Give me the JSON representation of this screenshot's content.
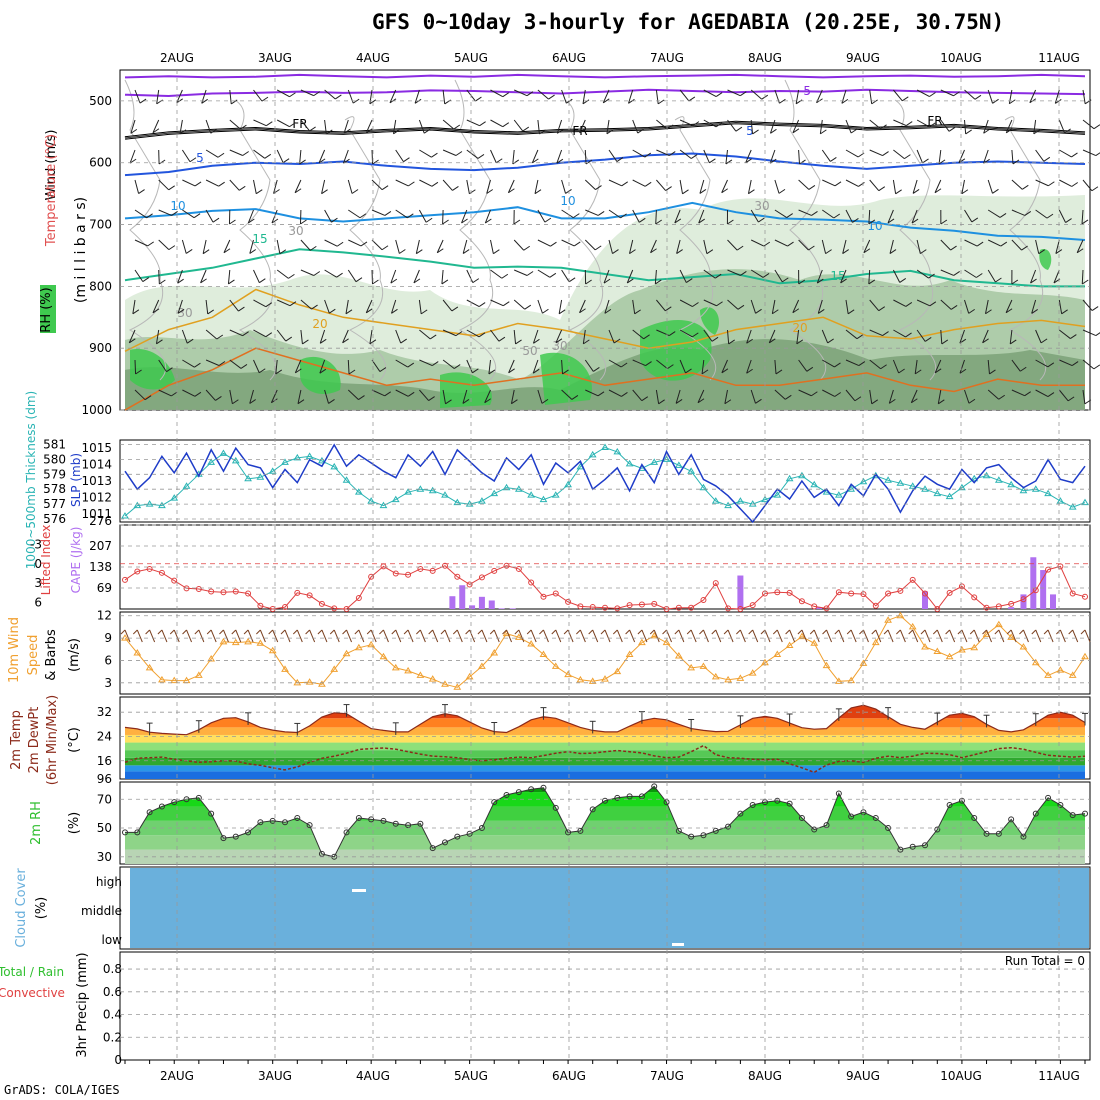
{
  "title": "GFS 0~10day 3-hourly for AGEDABIA (20.25E, 30.75N)",
  "footer": "GrADS: COLA/IGES",
  "date_labels": [
    "2AUG",
    "3AUG",
    "4AUG",
    "5AUG",
    "6AUG",
    "7AUG",
    "8AUG",
    "9AUG",
    "10AUG",
    "11AUG"
  ],
  "colors": {
    "rh_light": "#dcebd8",
    "rh_mid": "#a9c8a4",
    "rh_dark": "#7ea47a",
    "rh_green": "#3fc94f",
    "slp": "#1e3cc8",
    "thickness": "#2ab4b4",
    "lifted_index": "#e04040",
    "cape": "#b070f0",
    "wind10m": "#f0a030",
    "temp": "#8b2a1a",
    "dewpt": "#8b2a1a",
    "rh2m": "#2fbf2f",
    "cloud": "#6ab0dc"
  },
  "panels": {
    "upper": {
      "ylabel": [
        "Wind (m/s)",
        "Temperature (°C)",
        "RH (%)",
        "(m i l l i b a r s)"
      ],
      "yticks": [
        "500",
        "600",
        "700",
        "800",
        "900",
        "1000"
      ],
      "contour_labels": [
        "-5",
        "FR",
        "FR",
        "FR",
        "5",
        "5",
        "10",
        "10",
        "10",
        "15",
        "15",
        "20",
        "20",
        "30",
        "30",
        "30",
        "50",
        "30"
      ]
    },
    "slp": {
      "ylabel_left": "1000~500mb Thickness (dm)",
      "ylabel_right": "SLP (mb)",
      "left_ticks": [
        "581",
        "580",
        "579",
        "578",
        "577",
        "576"
      ],
      "right_ticks": [
        "1015",
        "1014",
        "1013",
        "1012",
        "1011"
      ]
    },
    "cape": {
      "ylabel_left": "Lifted Index",
      "ylabel_right": "CAPE (J/kg)",
      "left_ticks": [
        "-3",
        "0",
        "3",
        "6"
      ],
      "right_ticks": [
        "276",
        "207",
        "138",
        "69"
      ]
    },
    "wind": {
      "ylabel": [
        "10m Wind",
        "Speed",
        "& Barbs",
        "(m/s)"
      ],
      "ticks": [
        "12",
        "9",
        "6",
        "3"
      ]
    },
    "temp": {
      "ylabel": [
        "2m Temp",
        "2m DewPt",
        "(6hr Min/Max)",
        "(°C)"
      ],
      "ticks": [
        "32",
        "24",
        "16",
        "96"
      ]
    },
    "rh": {
      "ylabel": [
        "2m RH",
        "(%)"
      ],
      "ticks": [
        "70",
        "50",
        "30"
      ]
    },
    "cloud": {
      "ylabel": [
        "Cloud Cover",
        "(%)"
      ],
      "ticks": [
        "high",
        "middle",
        "low"
      ]
    },
    "precip": {
      "ylabel": [
        "Total / Rain",
        "Convective",
        "3hr Precip (mm)"
      ],
      "ticks": [
        "0.8",
        "0.6",
        "0.4",
        "0.2",
        "0"
      ],
      "run_total": "Run Total = 0"
    }
  },
  "chart_data": [
    {
      "type": "line",
      "title": "SLP (mb)",
      "series": [
        {
          "name": "SLP (mb)",
          "values": [
            1013.6,
            1012.5,
            1013.2,
            1014.5,
            1013.5,
            1014.7,
            1013.3,
            1014.9,
            1013.6,
            1015.0,
            1014.0,
            1013.8,
            1012.6,
            1013.7,
            1012.9,
            1014.3,
            1013.9,
            1015.2,
            1013.9,
            1014.6,
            1014.1,
            1013.6,
            1013.2,
            1014.6,
            1013.9,
            1014.8,
            1013.4,
            1014.9,
            1014.2,
            1013.5,
            1013.0,
            1014.4,
            1013.7,
            1014.6,
            1012.8,
            1014.1,
            1013.5,
            1014.2,
            1012.5,
            1013.1,
            1013.8,
            1012.4,
            1014.0,
            1012.9,
            1014.8,
            1013.4,
            1014.6,
            1013.1,
            1012.7,
            1012.1,
            1011.3,
            1010.5,
            1011.5,
            1012.5,
            1011.9,
            1013.0,
            1012.0,
            1012.5,
            1011.5,
            1012.8,
            1012.1,
            1013.4,
            1012.5,
            1011.1,
            1012.4,
            1013.3,
            1012.8,
            1012.5,
            1013.7,
            1012.9,
            1013.8,
            1014.0,
            1013.2,
            1012.6,
            1013.0,
            1014.3,
            1013.1,
            1012.9,
            1013.9
          ]
        }
      ],
      "ylim": [
        1010.5,
        1015.5
      ]
    },
    {
      "type": "line",
      "title": "1000~500mb Thickness (dm)",
      "series": [
        {
          "name": "1000~500mb Thickness (dm)",
          "values": [
            576.2,
            576.9,
            577.0,
            576.9,
            577.4,
            578.2,
            579.0,
            579.8,
            580.4,
            579.9,
            578.7,
            578.8,
            579.2,
            579.8,
            580.1,
            580.2,
            579.9,
            579.5,
            578.6,
            577.8,
            577.2,
            576.9,
            577.3,
            577.8,
            578.0,
            577.9,
            577.6,
            577.1,
            577.0,
            577.2,
            577.7,
            578.1,
            578.0,
            577.6,
            577.3,
            577.6,
            578.3,
            579.5,
            580.3,
            580.8,
            580.5,
            579.7,
            579.4,
            579.8,
            580.0,
            579.6,
            579.2,
            578.1,
            577.2,
            576.9,
            577.2,
            577.0,
            577.3,
            577.6,
            578.7,
            578.9,
            578.3,
            577.8,
            577.6,
            578.0,
            578.5,
            578.9,
            578.6,
            578.4,
            578.2,
            578.0,
            577.7,
            577.5,
            578.1,
            578.7,
            578.9,
            578.6,
            578.3,
            577.9,
            578.0,
            577.7,
            577.2,
            576.8,
            577.1
          ]
        }
      ],
      "ylim": [
        575.8,
        581.3
      ]
    },
    {
      "type": "line",
      "title": "Lifted Index",
      "series": [
        {
          "name": "Lifted Index",
          "values": [
            2.5,
            1.2,
            0.8,
            1.4,
            2.6,
            3.8,
            3.9,
            4.3,
            4.4,
            4.3,
            4.6,
            6.5,
            7.0,
            6.7,
            4.5,
            4.9,
            6.2,
            6.9,
            7.0,
            5.3,
            2.0,
            0.4,
            1.5,
            1.7,
            0.8,
            1.1,
            0.3,
            2.0,
            3.2,
            2.1,
            1.1,
            0.3,
            0.8,
            2.9,
            5.1,
            4.6,
            5.9,
            6.6,
            6.7,
            6.8,
            6.9,
            6.4,
            6.3,
            6.2,
            7.0,
            6.8,
            6.8,
            5.6,
            3.0,
            6.9,
            7.0,
            6.4,
            4.6,
            4.4,
            4.5,
            5.8,
            6.6,
            6.9,
            4.4,
            4.6,
            4.7,
            6.5,
            4.6,
            4.2,
            2.5,
            4.6,
            7.0,
            4.5,
            3.5,
            5.2,
            6.8,
            6.6,
            6.2,
            5.5,
            4.1,
            0.9,
            0.4,
            4.6,
            5.1
          ]
        }
      ],
      "ylim": [
        7,
        -6
      ]
    },
    {
      "type": "bar",
      "title": "CAPE (J/kg)",
      "series": [
        {
          "name": "CAPE (J/kg)",
          "values": [
            0,
            0,
            0,
            0,
            0,
            0,
            0,
            0,
            0,
            0,
            0,
            0,
            0,
            0,
            0,
            0,
            0,
            0,
            0,
            0,
            0,
            0,
            0,
            0,
            0,
            0,
            0,
            0,
            0,
            0,
            0,
            0,
            0,
            0,
            0,
            0,
            0,
            0,
            0,
            0,
            0,
            0,
            0,
            0,
            0,
            0,
            0,
            0,
            0,
            0,
            0,
            0,
            0,
            0,
            0,
            0,
            0,
            0,
            0,
            0,
            0,
            0,
            0,
            0,
            0,
            0,
            0,
            0,
            0,
            0,
            0,
            0,
            0,
            0,
            0,
            0,
            0,
            0,
            0
          ]
        }
      ],
      "bars": [
        {
          "x": 26.6,
          "v": 42
        },
        {
          "x": 27.4,
          "v": 78
        },
        {
          "x": 28.2,
          "v": 12
        },
        {
          "x": 29.0,
          "v": 40
        },
        {
          "x": 29.8,
          "v": 28
        },
        {
          "x": 30.6,
          "v": 2
        },
        {
          "x": 31.5,
          "v": 2
        },
        {
          "x": 50.0,
          "v": 110
        },
        {
          "x": 56.4,
          "v": 5
        },
        {
          "x": 65.0,
          "v": 58
        },
        {
          "x": 72.0,
          "v": 6
        },
        {
          "x": 73.0,
          "v": 48
        },
        {
          "x": 73.8,
          "v": 170
        },
        {
          "x": 74.6,
          "v": 128
        },
        {
          "x": 75.4,
          "v": 48
        }
      ],
      "ylim": [
        0,
        276
      ]
    },
    {
      "type": "line",
      "title": "10m Wind Speed (m/s)",
      "series": [
        {
          "name": "10m Wind Speed (m/s)",
          "values": [
            9.0,
            7.0,
            5.0,
            3.4,
            3.3,
            3.3,
            4.0,
            6.2,
            8.5,
            8.4,
            8.5,
            8.3,
            7.3,
            4.8,
            3.0,
            3.1,
            2.8,
            4.8,
            6.9,
            7.7,
            8.1,
            6.5,
            5.0,
            4.6,
            4.0,
            3.5,
            2.8,
            2.4,
            3.8,
            5.2,
            7.0,
            9.6,
            9.1,
            8.2,
            6.8,
            5.2,
            4.1,
            3.4,
            3.2,
            3.5,
            4.5,
            6.8,
            8.4,
            9.3,
            8.4,
            6.6,
            5.0,
            5.2,
            3.8,
            3.4,
            3.6,
            4.3,
            5.7,
            6.8,
            8.0,
            9.2,
            8.3,
            5.3,
            3.2,
            3.3,
            5.6,
            8.4,
            11.4,
            12.0,
            10.5,
            7.8,
            7.2,
            6.5,
            7.4,
            7.7,
            9.5,
            10.8,
            9.1,
            7.8,
            5.7,
            4.0,
            4.7,
            4.0,
            6.5
          ]
        }
      ],
      "ylim": [
        1.5,
        12.5
      ]
    },
    {
      "type": "area",
      "title": "2m Temp (°C)",
      "series": [
        {
          "name": "2m Temp (°C)",
          "values": [
            27.0,
            26.5,
            25.4,
            25.0,
            24.8,
            24.6,
            26.2,
            28.5,
            30.0,
            30.2,
            28.8,
            27.0,
            26.1,
            25.5,
            25.3,
            27.5,
            30.4,
            31.8,
            31.5,
            29.0,
            26.6,
            26.0,
            25.5,
            25.5,
            28.0,
            30.5,
            31.5,
            30.8,
            28.8,
            26.8,
            25.6,
            25.3,
            27.2,
            29.5,
            30.5,
            30.0,
            28.5,
            27.0,
            26.0,
            25.5,
            25.5,
            27.4,
            29.2,
            30.0,
            29.5,
            28.0,
            26.6,
            26.0,
            25.6,
            25.7,
            27.8,
            30.0,
            30.6,
            30.0,
            28.4,
            26.9,
            26.4,
            26.6,
            30.1,
            33.4,
            34.3,
            33.0,
            30.5,
            28.0,
            27.0,
            26.4,
            28.7,
            31.0,
            31.6,
            30.5,
            28.0,
            26.0,
            25.5,
            26.2,
            28.5,
            31.0,
            32.0,
            31.0,
            28.6
          ]
        },
        {
          "name": "2m DewPt (°C)",
          "values": [
            15.5,
            16.8,
            17.0,
            17.2,
            16.5,
            16.0,
            15.5,
            15.7,
            16.0,
            15.9,
            15.0,
            14.5,
            13.7,
            13.0,
            14.0,
            15.5,
            16.8,
            17.5,
            18.5,
            19.7,
            20.0,
            20.2,
            19.8,
            19.0,
            18.2,
            17.5,
            17.3,
            17.0,
            16.4,
            16.0,
            16.3,
            16.8,
            17.2,
            17.0,
            17.7,
            18.5,
            19.0,
            18.4,
            18.5,
            19.0,
            19.4,
            19.0,
            18.6,
            17.6,
            17.0,
            17.2,
            19.0,
            21.0,
            18.0,
            17.0,
            16.8,
            16.5,
            16.4,
            16.5,
            15.0,
            13.7,
            12.2,
            14.6,
            15.8,
            16.0,
            15.5,
            16.8,
            17.5,
            17.0,
            17.5,
            18.5,
            18.4,
            18.0,
            17.0,
            18.0,
            19.0,
            20.0,
            20.3,
            19.8,
            18.8,
            17.8,
            17.5,
            17.2,
            17.5
          ]
        }
      ],
      "ylim": [
        10,
        37
      ]
    },
    {
      "type": "area",
      "title": "2m RH (%)",
      "series": [
        {
          "name": "2m RH (%)",
          "values": [
            47,
            47,
            61,
            65,
            68,
            70,
            71,
            60,
            43,
            44,
            47,
            54,
            55,
            54,
            57,
            52,
            32,
            30,
            47,
            57,
            56,
            55,
            53,
            52,
            53,
            36,
            40,
            44,
            46,
            50,
            68,
            73,
            75,
            77,
            78,
            64,
            47,
            48,
            63,
            69,
            71,
            72,
            72,
            79,
            68,
            48,
            44,
            45,
            48,
            51,
            60,
            66,
            68,
            69,
            67,
            57,
            49,
            52,
            74,
            58,
            61,
            57,
            50,
            35,
            37,
            38,
            49,
            66,
            69,
            57,
            46,
            46,
            56,
            44,
            60,
            71,
            66,
            59,
            60
          ]
        }
      ],
      "ylim": [
        25,
        82
      ]
    },
    {
      "type": "heatmap",
      "title": "Cloud Cover (%)",
      "series": [
        {
          "name": "Cloud Cover",
          "values": [
            0
          ]
        }
      ]
    },
    {
      "type": "bar",
      "title": "3hr Precip (mm)",
      "series": [
        {
          "name": "Total / Rain",
          "values": [
            0
          ]
        }
      ],
      "ylim": [
        0,
        0.95
      ]
    }
  ]
}
